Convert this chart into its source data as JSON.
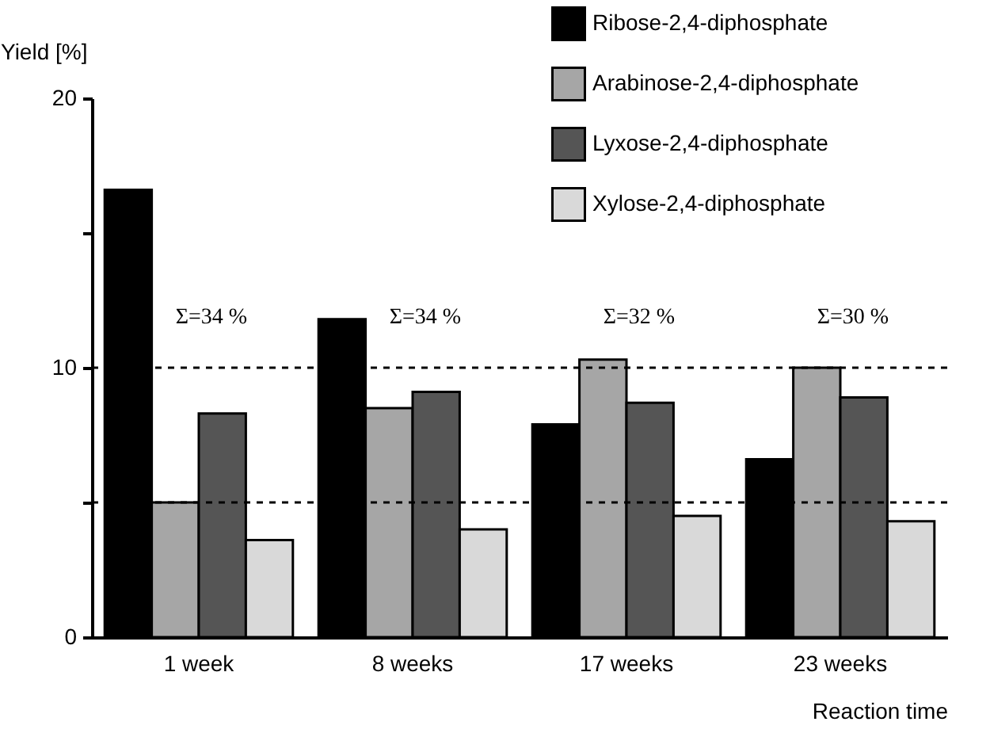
{
  "chart_data": {
    "type": "bar",
    "xlabel": "Reaction time",
    "ylabel": "Yield [%]",
    "categories": [
      "1 week",
      "8 weeks",
      "17 weeks",
      "23 weeks"
    ],
    "series": [
      {
        "name": "Ribose-2,4-diphosphate",
        "color": "#000000",
        "values": [
          16.6,
          11.8,
          7.9,
          6.6
        ]
      },
      {
        "name": "Arabinose-2,4-diphosphate",
        "color": "#a6a6a6",
        "values": [
          5.0,
          8.5,
          10.3,
          10.0
        ]
      },
      {
        "name": "Lyxose-2,4-diphosphate",
        "color": "#555555",
        "values": [
          8.3,
          9.1,
          8.7,
          8.9
        ]
      },
      {
        "name": "Xylose-2,4-diphosphate",
        "color": "#d9d9d9",
        "values": [
          3.6,
          4.0,
          4.5,
          4.3
        ]
      }
    ],
    "ylim": [
      0,
      20
    ],
    "yticks": [
      0,
      {
        "value": 5,
        "label": null
      },
      10,
      {
        "value": 15,
        "label": null
      },
      20
    ],
    "ref_lines": [
      {
        "axis": "y",
        "value": 10,
        "line_style": "dashed"
      },
      {
        "axis": "y",
        "value": 5,
        "line_style": "dashed"
      }
    ],
    "annotations": [
      "Σ=34 %",
      "Σ=34 %",
      "Σ=32 %",
      "Σ=30 %"
    ],
    "legend": "top right",
    "grid": false
  }
}
